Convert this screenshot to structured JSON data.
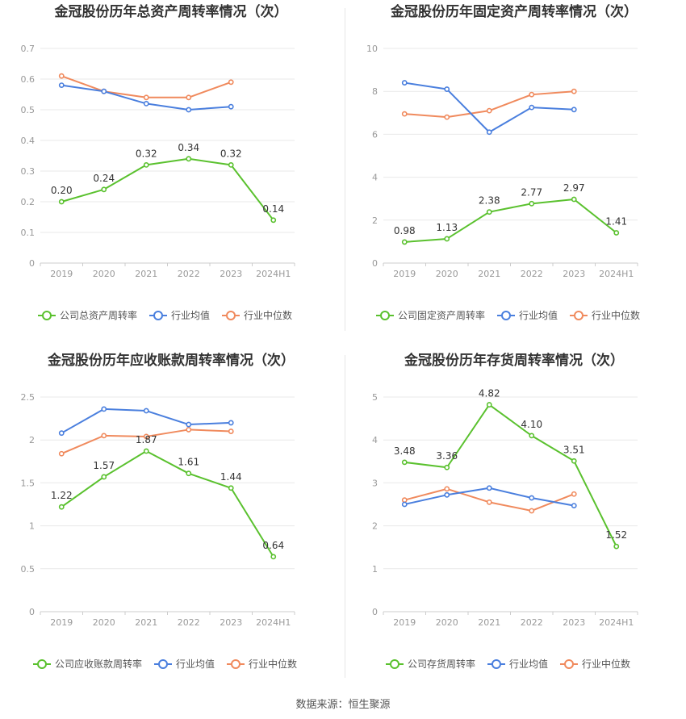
{
  "colors": {
    "company": "#5ac12e",
    "avg": "#4a7fde",
    "median": "#f08a5d",
    "grid": "#e9e9e9",
    "axis": "#999999",
    "title": "#333333"
  },
  "legend_labels": {
    "avg": "行业均值",
    "median": "行业中位数"
  },
  "source": "数据来源：恒生聚源",
  "chart_data": [
    {
      "type": "line",
      "title": "金冠股份历年总资产周转率情况（次）",
      "categories": [
        "2019",
        "2020",
        "2021",
        "2022",
        "2023",
        "2024H1"
      ],
      "ylim": [
        0,
        0.7
      ],
      "yticks": [
        "0",
        "0.1",
        "0.2",
        "0.3",
        "0.4",
        "0.5",
        "0.6",
        "0.7"
      ],
      "series": [
        {
          "name": "公司总资产周转率",
          "role": "company",
          "values": [
            0.2,
            0.24,
            0.32,
            0.34,
            0.32,
            0.14
          ],
          "labels": [
            "0.20",
            "0.24",
            "0.32",
            "0.34",
            "0.32",
            "0.14"
          ]
        },
        {
          "name": "行业均值",
          "role": "avg",
          "values": [
            0.58,
            0.56,
            0.52,
            0.5,
            0.51,
            null
          ]
        },
        {
          "name": "行业中位数",
          "role": "median",
          "values": [
            0.61,
            0.56,
            0.54,
            0.54,
            0.59,
            null
          ]
        }
      ]
    },
    {
      "type": "line",
      "title": "金冠股份历年固定资产周转率情况（次）",
      "categories": [
        "2019",
        "2020",
        "2021",
        "2022",
        "2023",
        "2024H1"
      ],
      "ylim": [
        0,
        10
      ],
      "yticks": [
        "0",
        "2",
        "4",
        "6",
        "8",
        "10"
      ],
      "series": [
        {
          "name": "公司固定资产周转率",
          "role": "company",
          "values": [
            0.98,
            1.13,
            2.38,
            2.77,
            2.97,
            1.41
          ],
          "labels": [
            "0.98",
            "1.13",
            "2.38",
            "2.77",
            "2.97",
            "1.41"
          ]
        },
        {
          "name": "行业均值",
          "role": "avg",
          "values": [
            8.4,
            8.1,
            6.1,
            7.25,
            7.15,
            null
          ]
        },
        {
          "name": "行业中位数",
          "role": "median",
          "values": [
            6.95,
            6.8,
            7.1,
            7.85,
            8.0,
            null
          ]
        }
      ]
    },
    {
      "type": "line",
      "title": "金冠股份历年应收账款周转率情况（次）",
      "categories": [
        "2019",
        "2020",
        "2021",
        "2022",
        "2023",
        "2024H1"
      ],
      "ylim": [
        0,
        2.5
      ],
      "yticks": [
        "0",
        "0.5",
        "1",
        "1.5",
        "2",
        "2.5"
      ],
      "series": [
        {
          "name": "公司应收账款周转率",
          "role": "company",
          "values": [
            1.22,
            1.57,
            1.87,
            1.61,
            1.44,
            0.64
          ],
          "labels": [
            "1.22",
            "1.57",
            "1.87",
            "1.61",
            "1.44",
            "0.64"
          ]
        },
        {
          "name": "行业均值",
          "role": "avg",
          "values": [
            2.08,
            2.36,
            2.34,
            2.18,
            2.2,
            null
          ]
        },
        {
          "name": "行业中位数",
          "role": "median",
          "values": [
            1.84,
            2.05,
            2.04,
            2.12,
            2.1,
            null
          ]
        }
      ]
    },
    {
      "type": "line",
      "title": "金冠股份历年存货周转率情况（次）",
      "categories": [
        "2019",
        "2020",
        "2021",
        "2022",
        "2023",
        "2024H1"
      ],
      "ylim": [
        0,
        5
      ],
      "yticks": [
        "0",
        "1",
        "2",
        "3",
        "4",
        "5"
      ],
      "series": [
        {
          "name": "公司存货周转率",
          "role": "company",
          "values": [
            3.48,
            3.36,
            4.82,
            4.1,
            3.51,
            1.52
          ],
          "labels": [
            "3.48",
            "3.36",
            "4.82",
            "4.10",
            "3.51",
            "1.52"
          ]
        },
        {
          "name": "行业均值",
          "role": "avg",
          "values": [
            2.5,
            2.72,
            2.88,
            2.65,
            2.47,
            null
          ]
        },
        {
          "name": "行业中位数",
          "role": "median",
          "values": [
            2.6,
            2.86,
            2.55,
            2.35,
            2.74,
            null
          ]
        }
      ]
    }
  ]
}
